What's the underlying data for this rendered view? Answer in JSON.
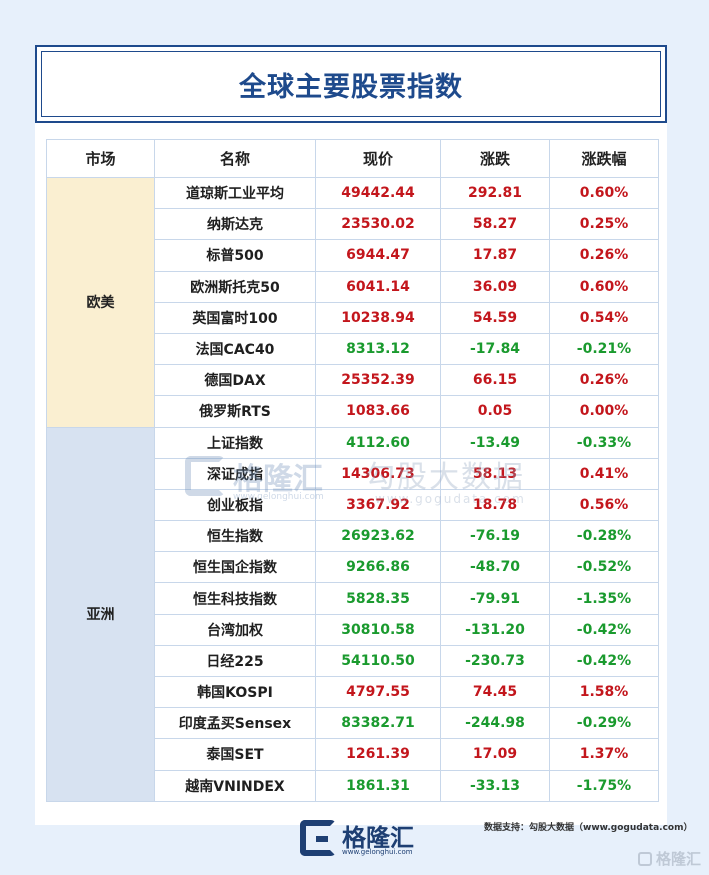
{
  "title": "全球主要股票指数",
  "headers": {
    "market": "市场",
    "name": "名称",
    "price": "现价",
    "change": "涨跌",
    "pct": "涨跌幅"
  },
  "regions": {
    "eu": "欧美",
    "asia": "亚洲"
  },
  "rows": [
    {
      "name": "道琼斯工业平均",
      "price": "49442.44",
      "change": "292.81",
      "pct": "0.60%",
      "trend": "up"
    },
    {
      "name": "纳斯达克",
      "price": "23530.02",
      "change": "58.27",
      "pct": "0.25%",
      "trend": "up"
    },
    {
      "name": "标普500",
      "price": "6944.47",
      "change": "17.87",
      "pct": "0.26%",
      "trend": "up"
    },
    {
      "name": "欧洲斯托克50",
      "price": "6041.14",
      "change": "36.09",
      "pct": "0.60%",
      "trend": "up"
    },
    {
      "name": "英国富时100",
      "price": "10238.94",
      "change": "54.59",
      "pct": "0.54%",
      "trend": "up"
    },
    {
      "name": "法国CAC40",
      "price": "8313.12",
      "change": "-17.84",
      "pct": "-0.21%",
      "trend": "down"
    },
    {
      "name": "德国DAX",
      "price": "25352.39",
      "change": "66.15",
      "pct": "0.26%",
      "trend": "up"
    },
    {
      "name": "俄罗斯RTS",
      "price": "1083.66",
      "change": "0.05",
      "pct": "0.00%",
      "trend": "up"
    },
    {
      "name": "上证指数",
      "price": "4112.60",
      "change": "-13.49",
      "pct": "-0.33%",
      "trend": "down"
    },
    {
      "name": "深证成指",
      "price": "14306.73",
      "change": "58.13",
      "pct": "0.41%",
      "trend": "up"
    },
    {
      "name": "创业板指",
      "price": "3367.92",
      "change": "18.78",
      "pct": "0.56%",
      "trend": "up"
    },
    {
      "name": "恒生指数",
      "price": "26923.62",
      "change": "-76.19",
      "pct": "-0.28%",
      "trend": "down"
    },
    {
      "name": "恒生国企指数",
      "price": "9266.86",
      "change": "-48.70",
      "pct": "-0.52%",
      "trend": "down"
    },
    {
      "name": "恒生科技指数",
      "price": "5828.35",
      "change": "-79.91",
      "pct": "-1.35%",
      "trend": "down"
    },
    {
      "name": "台湾加权",
      "price": "30810.58",
      "change": "-131.20",
      "pct": "-0.42%",
      "trend": "down"
    },
    {
      "name": "日经225",
      "price": "54110.50",
      "change": "-230.73",
      "pct": "-0.42%",
      "trend": "down"
    },
    {
      "name": "韩国KOSPI",
      "price": "4797.55",
      "change": "74.45",
      "pct": "1.58%",
      "trend": "up"
    },
    {
      "name": "印度孟买Sensex",
      "price": "83382.71",
      "change": "-244.98",
      "pct": "-0.29%",
      "trend": "down"
    },
    {
      "name": "泰国SET",
      "price": "1261.39",
      "change": "17.09",
      "pct": "1.37%",
      "trend": "up"
    },
    {
      "name": "越南VNINDEX",
      "price": "1861.31",
      "change": "-33.13",
      "pct": "-1.75%",
      "trend": "down"
    }
  ],
  "watermark": {
    "brand": "格隆汇",
    "brand_url": "www.gelonghui.com",
    "provider": "勾股大数据",
    "provider_url": "www.gogudata.com"
  },
  "footer": {
    "logo_name": "格隆汇",
    "logo_url": "www.gelonghui.com",
    "source": "数据支持：勾股大数据（www.gogudata.com）",
    "corner_mark": "格隆汇"
  },
  "colors": {
    "up": "#c3161c",
    "down": "#1a9a2e",
    "title": "#1e4a8c",
    "eu_bg": "#faefd1",
    "asia_bg": "#d7e2f1",
    "page_bg": "#e7f0fb"
  }
}
